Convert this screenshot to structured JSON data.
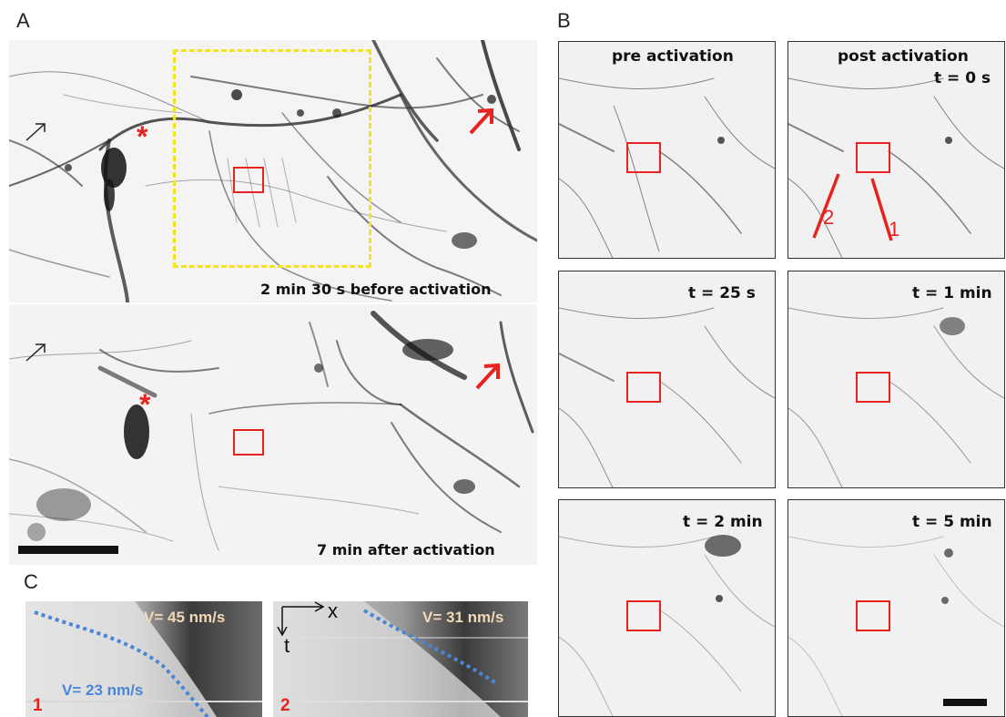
{
  "panels": {
    "a": {
      "label": "A",
      "top_caption": "2 min 30 s before activation",
      "bottom_caption": "7 min after activation",
      "markers": {
        "asterisk": "*"
      }
    },
    "b": {
      "label": "B",
      "frames": [
        {
          "line1": "pre activation",
          "line2": ""
        },
        {
          "line1": "post activation",
          "line2": "t = 0 s"
        },
        {
          "line1": "t = 25 s",
          "line2": ""
        },
        {
          "line1": "t = 1 min",
          "line2": ""
        },
        {
          "line1": "t = 2 min",
          "line2": ""
        },
        {
          "line1": "t = 5 min",
          "line2": ""
        }
      ],
      "line_labels": [
        "2",
        "1"
      ]
    },
    "c": {
      "label": "C",
      "kymographs": [
        {
          "index_label": "1",
          "velocity_upper": "V= 45 nm/s",
          "velocity_lower": "V= 23 nm/s"
        },
        {
          "index_label": "2",
          "velocity_upper": "V= 31 nm/s"
        }
      ],
      "axes": {
        "x": "x",
        "t": "t"
      }
    }
  },
  "colors": {
    "roi": "#e8231f",
    "activation_region": "#f2e21f",
    "fit_line": "#4a86d6"
  }
}
